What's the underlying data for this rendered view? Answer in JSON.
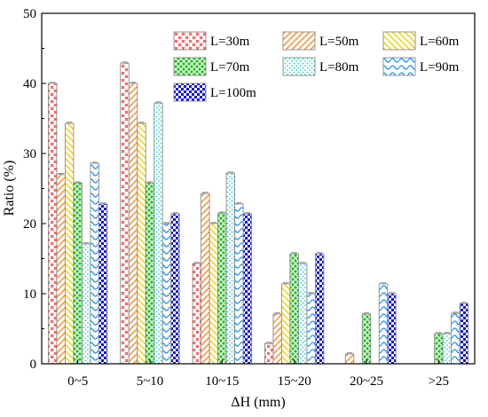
{
  "chart_data": {
    "type": "bar",
    "title": "",
    "xlabel": "ΔH (mm)",
    "ylabel": "Ratio (%)",
    "ylim": [
      0,
      50
    ],
    "yticks": [
      0,
      10,
      20,
      30,
      40,
      50
    ],
    "categories": [
      "0~5",
      "5~10",
      "10~15",
      "15~20",
      "20~25",
      ">25"
    ],
    "series": [
      {
        "name": "L=30m",
        "color": "#ff3b3b",
        "pattern": "cross-hatch",
        "values": [
          40.0,
          42.9,
          14.3,
          2.9,
          0,
          0
        ]
      },
      {
        "name": "L=50m",
        "color": "#ff8a2a",
        "pattern": "diagonal-lines",
        "values": [
          27.0,
          40.0,
          24.3,
          7.1,
          1.4,
          0
        ]
      },
      {
        "name": "L=60m",
        "color": "#f0d000",
        "pattern": "diagonal-lines-reverse",
        "values": [
          34.3,
          34.3,
          20.0,
          11.4,
          0,
          0
        ]
      },
      {
        "name": "L=70m",
        "color": "#22c022",
        "pattern": "grid",
        "values": [
          25.8,
          25.8,
          21.5,
          15.7,
          7.1,
          4.3
        ]
      },
      {
        "name": "L=80m",
        "color": "#19d3d3",
        "pattern": "dots",
        "values": [
          17.1,
          37.2,
          27.2,
          14.3,
          0,
          4.3
        ]
      },
      {
        "name": "L=90m",
        "color": "#1e90ff",
        "pattern": "waves",
        "values": [
          28.6,
          20.0,
          22.8,
          10.0,
          11.4,
          7.2
        ]
      },
      {
        "name": "L=100m",
        "color": "#1414e0",
        "pattern": "checker",
        "values": [
          22.8,
          21.4,
          21.4,
          15.7,
          10.0,
          8.6
        ]
      }
    ],
    "legend_position": "top-right",
    "grid": false
  }
}
